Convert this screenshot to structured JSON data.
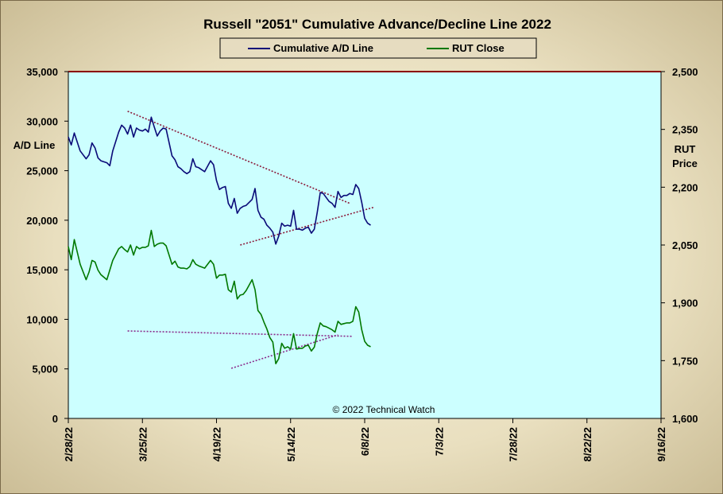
{
  "chart_data": {
    "type": "line",
    "title": "Russell \"2051\" Cumulative Advance/Decline Line 2022",
    "annotation": "© 2022  Technical Watch",
    "legend_position": "top-center",
    "grid": false,
    "x_tick_labels": [
      "2/28/22",
      "3/25/22",
      "4/19/22",
      "5/14/22",
      "6/8/22",
      "7/3/22",
      "7/28/22",
      "8/22/22",
      "9/16/22"
    ],
    "x_range_days": [
      0,
      200
    ],
    "y_left": {
      "label_lines": [
        "A/D Line"
      ],
      "ylim": [
        0,
        35000
      ],
      "ticks": [
        "0",
        "5,000",
        "10,000",
        "15,000",
        "20,000",
        "25,000",
        "30,000",
        "35,000"
      ]
    },
    "y_right": {
      "label_lines": [
        "RUT",
        "Price"
      ],
      "ylim": [
        1600,
        2500
      ],
      "ticks": [
        "1,600",
        "1,750",
        "1,900",
        "2,050",
        "2,200",
        "2,350",
        "2,500"
      ]
    },
    "colors": {
      "ad_line": "#0a0a78",
      "rut": "#007800",
      "trend_ad": "#8b1a3a",
      "trend_rut": "#8b2a8b",
      "plot_bg": "#ccffff",
      "top_border": "#8b0000"
    },
    "series": [
      {
        "name": "Cumulative A/D Line",
        "axis": "left",
        "x": [
          0,
          1,
          2,
          4,
          6,
          7,
          8,
          9,
          10,
          11,
          13,
          14,
          15,
          17,
          18,
          19,
          20,
          21,
          22,
          23,
          24,
          25,
          26,
          27,
          28,
          29,
          30,
          31,
          32,
          33,
          35,
          36,
          37,
          38,
          39,
          40,
          41,
          42,
          43,
          44,
          45,
          46,
          48,
          49,
          50,
          51,
          52,
          53,
          54,
          55,
          56,
          57,
          58,
          59,
          60,
          62,
          63,
          64,
          65,
          66,
          67,
          68,
          69,
          70,
          71,
          72,
          73,
          74,
          75,
          76,
          77,
          78,
          79,
          80,
          81,
          82,
          83,
          84,
          85,
          86,
          87,
          88,
          89,
          90,
          91,
          92,
          93,
          94,
          95,
          96,
          97,
          98,
          99,
          100,
          101,
          102
        ],
        "values": [
          28400,
          27600,
          28800,
          27000,
          26200,
          26600,
          27800,
          27300,
          26300,
          26000,
          25800,
          25500,
          27000,
          28900,
          29600,
          29300,
          28700,
          29600,
          28400,
          29300,
          29100,
          29000,
          29200,
          28900,
          30400,
          29400,
          28500,
          29000,
          29300,
          29200,
          26500,
          26100,
          25400,
          25200,
          24900,
          24700,
          24900,
          26200,
          25400,
          25300,
          25100,
          24900,
          26000,
          25600,
          24000,
          23100,
          23300,
          23400,
          21700,
          21200,
          22200,
          20700,
          21200,
          21400,
          21500,
          22100,
          23200,
          21000,
          20300,
          20100,
          19500,
          19200,
          18800,
          17600,
          18400,
          19700,
          19400,
          19500,
          19400,
          21000,
          19100,
          19100,
          19000,
          19200,
          19300,
          18700,
          19100,
          20800,
          22800,
          22700,
          22300,
          21900,
          21700,
          21300,
          22900,
          22300,
          22500,
          22500,
          22700,
          22600,
          23600,
          23200,
          21800,
          20200,
          19700,
          19500
        ]
      },
      {
        "name": "RUT Close",
        "axis": "right",
        "x": [
          0,
          1,
          2,
          4,
          6,
          7,
          8,
          9,
          10,
          11,
          13,
          14,
          15,
          17,
          18,
          19,
          20,
          21,
          22,
          23,
          24,
          25,
          26,
          27,
          28,
          29,
          30,
          31,
          32,
          33,
          35,
          36,
          37,
          38,
          39,
          40,
          41,
          42,
          43,
          44,
          45,
          46,
          48,
          49,
          50,
          51,
          52,
          53,
          54,
          55,
          56,
          57,
          58,
          59,
          60,
          62,
          63,
          64,
          65,
          66,
          67,
          68,
          69,
          70,
          71,
          72,
          73,
          74,
          75,
          76,
          77,
          78,
          79,
          80,
          81,
          82,
          83,
          84,
          85,
          86,
          87,
          88,
          89,
          90,
          91,
          92,
          93,
          94,
          95,
          96,
          97,
          98,
          99,
          100,
          101,
          102
        ],
        "values": [
          2046,
          2012,
          2064,
          2000,
          1960,
          1980,
          2010,
          2006,
          1985,
          1973,
          1960,
          1985,
          2010,
          2040,
          2046,
          2038,
          2032,
          2050,
          2024,
          2046,
          2040,
          2044,
          2044,
          2048,
          2088,
          2046,
          2052,
          2055,
          2055,
          2048,
          2000,
          2008,
          1993,
          1990,
          1990,
          1988,
          1994,
          2012,
          2000,
          1996,
          1993,
          1990,
          2010,
          2000,
          1964,
          1972,
          1972,
          1974,
          1934,
          1928,
          1956,
          1910,
          1920,
          1922,
          1932,
          1960,
          1934,
          1880,
          1870,
          1850,
          1832,
          1810,
          1798,
          1742,
          1755,
          1795,
          1782,
          1786,
          1780,
          1820,
          1780,
          1782,
          1782,
          1788,
          1790,
          1775,
          1785,
          1820,
          1848,
          1840,
          1838,
          1834,
          1830,
          1824,
          1852,
          1844,
          1846,
          1848,
          1848,
          1852,
          1890,
          1876,
          1830,
          1800,
          1790,
          1786
        ]
      }
    ],
    "trendlines": [
      {
        "axis": "left",
        "from": [
          20,
          31000
        ],
        "to": [
          95,
          21700
        ],
        "style": "dotted"
      },
      {
        "axis": "left",
        "from": [
          58,
          17500
        ],
        "to": [
          103,
          21300
        ],
        "style": "dotted"
      },
      {
        "axis": "right",
        "from": [
          20,
          1827
        ],
        "to": [
          96,
          1813
        ],
        "style": "dotted"
      },
      {
        "axis": "right",
        "from": [
          55,
          1730
        ],
        "to": [
          91,
          1817
        ],
        "style": "dotted"
      }
    ],
    "legend": [
      {
        "label": "Cumulative A/D Line"
      },
      {
        "label": "RUT Close"
      }
    ]
  }
}
